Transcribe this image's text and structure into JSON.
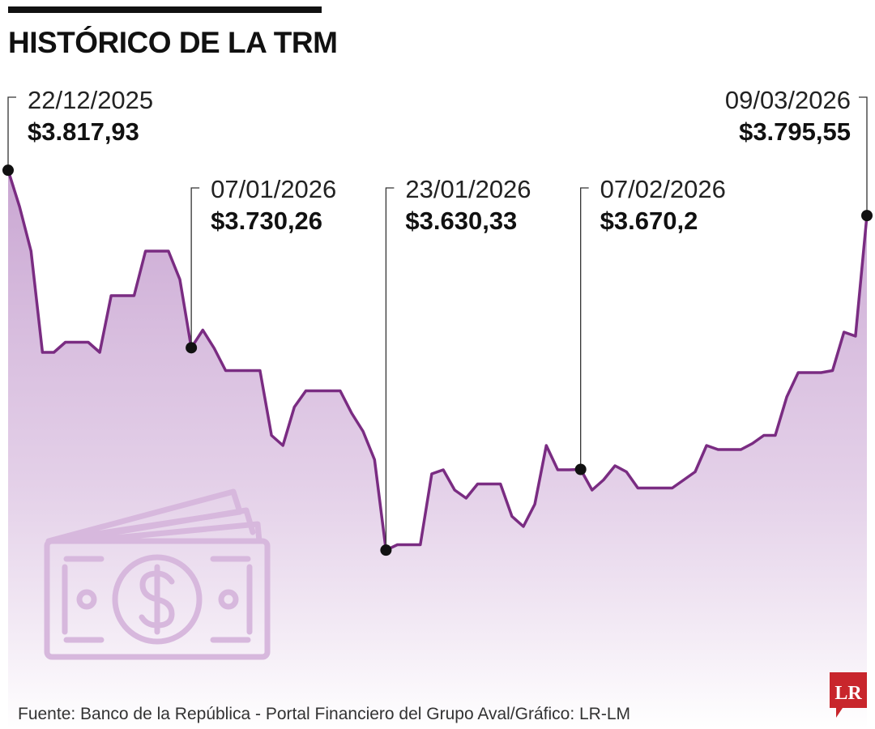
{
  "header": {
    "title": "HISTÓRICO DE LA TRM"
  },
  "footer": {
    "source": "Fuente: Banco de la República - Portal Financiero del Grupo Aval/Gráfico: LR-LM"
  },
  "logo": {
    "text": "LR"
  },
  "colors": {
    "line": "#7a2c82",
    "area": "#c9a6d2",
    "icon": "#d7b8dd",
    "logo_bg": "#c8262c"
  },
  "icons": {
    "background": "money-bills-icon"
  },
  "chart_data": {
    "type": "area",
    "title": "HISTÓRICO DE LA TRM",
    "xlabel": "",
    "ylabel": "",
    "ylim": [
      3590,
      3830
    ],
    "grid": false,
    "series": [
      {
        "values": [
          3817.93,
          3800,
          3778,
          3728,
          3728,
          3733,
          3733,
          3733,
          3728,
          3756,
          3756,
          3756,
          3778,
          3778,
          3778,
          3764,
          3730.26,
          3739,
          3730,
          3719,
          3719,
          3719,
          3719,
          3687,
          3682,
          3701,
          3709,
          3709,
          3709,
          3709,
          3698,
          3689,
          3675,
          3630.33,
          3633,
          3633,
          3633,
          3668,
          3670,
          3660,
          3656,
          3663,
          3663,
          3663,
          3647,
          3642,
          3653,
          3682,
          3670,
          3670,
          3670.2,
          3660,
          3665,
          3672,
          3669,
          3661,
          3661,
          3661,
          3661,
          3665,
          3669,
          3682,
          3680,
          3680,
          3680,
          3683,
          3687,
          3687,
          3706,
          3718,
          3718,
          3718,
          3719,
          3738,
          3736,
          3795.55
        ]
      }
    ],
    "annotations": [
      {
        "index": 0,
        "date": "22/12/2025",
        "value": "$3.817,93"
      },
      {
        "index": 16,
        "date": "07/01/2026",
        "value": "$3.730,26"
      },
      {
        "index": 33,
        "date": "23/01/2026",
        "value": "$3.630,33"
      },
      {
        "index": 50,
        "date": "07/02/2026",
        "value": "$3.670,2"
      },
      {
        "index": 75,
        "date": "09/03/2026",
        "value": "$3.795,55"
      }
    ]
  }
}
